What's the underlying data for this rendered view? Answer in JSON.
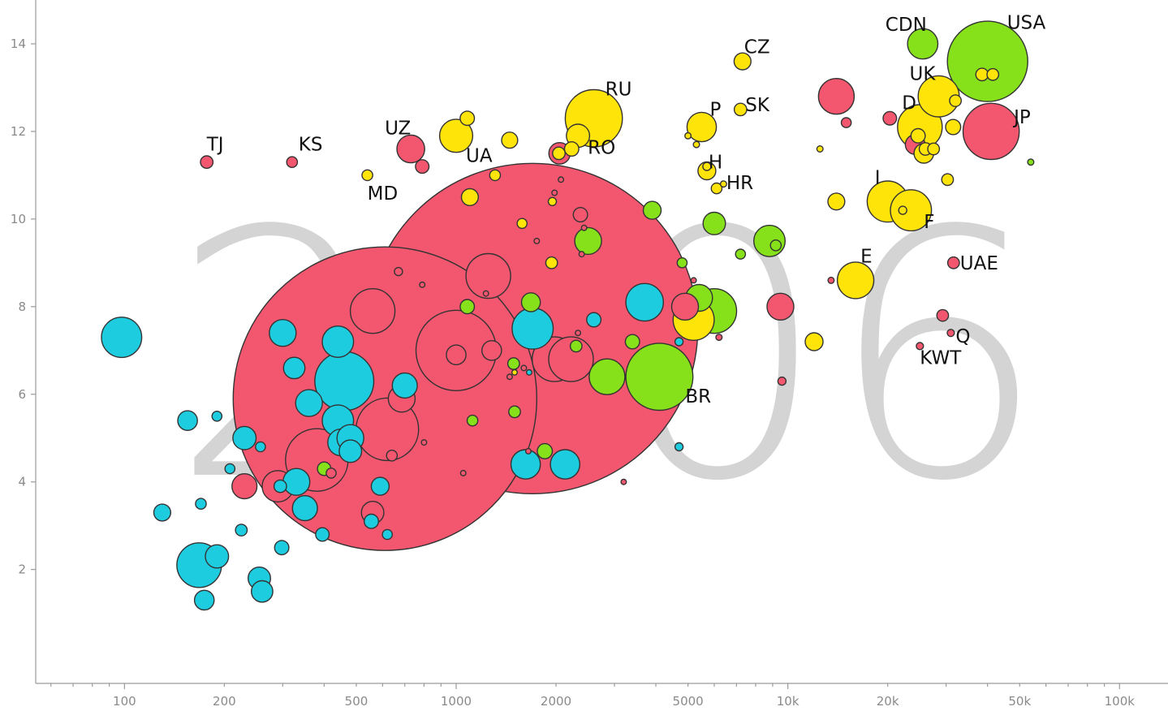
{
  "colors": {
    "blue": "#1ecce0",
    "red": "#f2576f",
    "green": "#86e01a",
    "yellow": "#ffe40a",
    "watermark": "#d4d4d4",
    "axis": "#9a9a9a"
  },
  "chart_data": {
    "type": "scatter",
    "title": "",
    "xlabel": "",
    "ylabel": "",
    "x_scale": "log",
    "xlim": [
      54,
      140000
    ],
    "ylim": [
      -0.6,
      15.0
    ],
    "watermark_year": "2006",
    "x_ticks": [
      {
        "value": 100,
        "label": "100"
      },
      {
        "value": 200,
        "label": "200"
      },
      {
        "value": 500,
        "label": "500"
      },
      {
        "value": 1000,
        "label": "1000"
      },
      {
        "value": 2000,
        "label": "2000"
      },
      {
        "value": 5000,
        "label": "5000"
      },
      {
        "value": 10000,
        "label": "10k"
      },
      {
        "value": 20000,
        "label": "20k"
      },
      {
        "value": 50000,
        "label": "50k"
      },
      {
        "value": 100000,
        "label": "100k"
      }
    ],
    "y_ticks": [
      {
        "value": 2,
        "label": "2"
      },
      {
        "value": 4,
        "label": "4"
      },
      {
        "value": 6,
        "label": "6"
      },
      {
        "value": 8,
        "label": "8"
      },
      {
        "value": 10,
        "label": "10"
      },
      {
        "value": 12,
        "label": "12"
      },
      {
        "value": 14,
        "label": "14"
      }
    ],
    "bubbles": [
      {
        "x": 1700,
        "y": 7.5,
        "size": 37,
        "color": "red"
      },
      {
        "x": 610,
        "y": 5.9,
        "size": 34,
        "color": "red"
      },
      {
        "x": 1000,
        "y": 7.0,
        "size": 9,
        "color": "red"
      },
      {
        "x": 40000,
        "y": 13.6,
        "size": 9,
        "color": "green"
      },
      {
        "x": 4100,
        "y": 6.4,
        "size": 7.5,
        "color": "green"
      },
      {
        "x": 460,
        "y": 6.3,
        "size": 6.6,
        "color": "blue"
      },
      {
        "x": 2600,
        "y": 12.3,
        "size": 6.4,
        "color": "yellow"
      },
      {
        "x": 41000,
        "y": 12.0,
        "size": 6.3,
        "color": "red"
      },
      {
        "x": 380,
        "y": 4.5,
        "size": 7,
        "color": "red"
      },
      {
        "x": 620,
        "y": 5.2,
        "size": 7,
        "color": "red"
      },
      {
        "x": 1250,
        "y": 8.7,
        "size": 5,
        "color": "red"
      },
      {
        "x": 1980,
        "y": 6.8,
        "size": 5,
        "color": "red"
      },
      {
        "x": 2220,
        "y": 6.8,
        "size": 5,
        "color": "red"
      },
      {
        "x": 25000,
        "y": 12.1,
        "size": 5,
        "color": "yellow"
      },
      {
        "x": 6000,
        "y": 7.9,
        "size": 5,
        "color": "green"
      },
      {
        "x": 560,
        "y": 7.9,
        "size": 5,
        "color": "red"
      },
      {
        "x": 1700,
        "y": 7.5,
        "size": 4.6,
        "color": "blue"
      },
      {
        "x": 28500,
        "y": 12.8,
        "size": 4.6,
        "color": "yellow"
      },
      {
        "x": 20000,
        "y": 10.4,
        "size": 4.6,
        "color": "yellow"
      },
      {
        "x": 5200,
        "y": 7.7,
        "size": 4.6,
        "color": "yellow"
      },
      {
        "x": 23500,
        "y": 10.2,
        "size": 4.6,
        "color": "yellow"
      },
      {
        "x": 3700,
        "y": 8.1,
        "size": 4.2,
        "color": "blue"
      },
      {
        "x": 290,
        "y": 3.9,
        "size": 3.5,
        "color": "red"
      },
      {
        "x": 16000,
        "y": 8.6,
        "size": 4.1,
        "color": "yellow"
      },
      {
        "x": 98,
        "y": 7.3,
        "size": 4.5,
        "color": "blue"
      },
      {
        "x": 168,
        "y": 2.1,
        "size": 5,
        "color": "blue"
      },
      {
        "x": 440,
        "y": 7.2,
        "size": 3.5,
        "color": "blue"
      },
      {
        "x": 440,
        "y": 5.4,
        "size": 3.5,
        "color": "blue"
      },
      {
        "x": 2850,
        "y": 6.4,
        "size": 4,
        "color": "green"
      },
      {
        "x": 8800,
        "y": 9.5,
        "size": 3.5,
        "color": "green"
      },
      {
        "x": 1000,
        "y": 11.9,
        "size": 3.7,
        "color": "yellow"
      },
      {
        "x": 14000,
        "y": 12.8,
        "size": 4,
        "color": "red"
      },
      {
        "x": 25500,
        "y": 14.0,
        "size": 3.4,
        "color": "green"
      },
      {
        "x": 730,
        "y": 11.6,
        "size": 3.1,
        "color": "red"
      },
      {
        "x": 1620,
        "y": 4.4,
        "size": 3.3,
        "color": "blue"
      },
      {
        "x": 2130,
        "y": 4.4,
        "size": 3.3,
        "color": "blue"
      },
      {
        "x": 5500,
        "y": 12.1,
        "size": 3.3,
        "color": "yellow"
      },
      {
        "x": 9500,
        "y": 8.0,
        "size": 3,
        "color": "red"
      },
      {
        "x": 5400,
        "y": 8.2,
        "size": 3,
        "color": "green"
      },
      {
        "x": 4900,
        "y": 8.0,
        "size": 3,
        "color": "red"
      },
      {
        "x": 2500,
        "y": 9.5,
        "size": 3,
        "color": "green"
      },
      {
        "x": 685,
        "y": 5.9,
        "size": 3,
        "color": "red"
      },
      {
        "x": 450,
        "y": 4.9,
        "size": 3,
        "color": "blue"
      },
      {
        "x": 360,
        "y": 5.8,
        "size": 3,
        "color": "blue"
      },
      {
        "x": 300,
        "y": 7.4,
        "size": 3,
        "color": "blue"
      },
      {
        "x": 350,
        "y": 3.4,
        "size": 2.8,
        "color": "blue"
      },
      {
        "x": 230,
        "y": 3.9,
        "size": 2.8,
        "color": "red"
      },
      {
        "x": 2050,
        "y": 11.5,
        "size": 2.4,
        "color": "red"
      },
      {
        "x": 6000,
        "y": 9.9,
        "size": 2.5,
        "color": "green"
      },
      {
        "x": 480,
        "y": 5.0,
        "size": 3,
        "color": "blue"
      },
      {
        "x": 480,
        "y": 4.7,
        "size": 2.5,
        "color": "blue"
      },
      {
        "x": 560,
        "y": 3.3,
        "size": 2.5,
        "color": "red"
      },
      {
        "x": 1080,
        "y": 12.3,
        "size": 1.6,
        "color": "yellow"
      },
      {
        "x": 190,
        "y": 2.3,
        "size": 2.6,
        "color": "blue"
      },
      {
        "x": 255,
        "y": 1.8,
        "size": 2.5,
        "color": "blue"
      },
      {
        "x": 260,
        "y": 1.5,
        "size": 2.4,
        "color": "blue"
      },
      {
        "x": 174,
        "y": 1.3,
        "size": 2.2,
        "color": "blue"
      },
      {
        "x": 230,
        "y": 5.0,
        "size": 2.6,
        "color": "blue"
      },
      {
        "x": 155,
        "y": 5.4,
        "size": 2.2,
        "color": "blue"
      },
      {
        "x": 130,
        "y": 3.3,
        "size": 1.9,
        "color": "blue"
      },
      {
        "x": 330,
        "y": 4.0,
        "size": 3,
        "color": "blue"
      },
      {
        "x": 325,
        "y": 6.6,
        "size": 2.4,
        "color": "blue"
      },
      {
        "x": 1680,
        "y": 8.1,
        "size": 2.1,
        "color": "green"
      },
      {
        "x": 790,
        "y": 11.2,
        "size": 1.5,
        "color": "red"
      },
      {
        "x": 1000,
        "y": 6.9,
        "size": 2.2,
        "color": "red"
      },
      {
        "x": 1280,
        "y": 7.0,
        "size": 2.2,
        "color": "red"
      },
      {
        "x": 700,
        "y": 6.2,
        "size": 2.8,
        "color": "blue"
      },
      {
        "x": 1310,
        "y": 11.0,
        "size": 1.2,
        "color": "yellow"
      },
      {
        "x": 1100,
        "y": 10.5,
        "size": 1.9,
        "color": "yellow"
      },
      {
        "x": 1450,
        "y": 11.8,
        "size": 1.8,
        "color": "yellow"
      },
      {
        "x": 2330,
        "y": 11.9,
        "size": 2.6,
        "color": "yellow"
      },
      {
        "x": 2230,
        "y": 11.6,
        "size": 1.6,
        "color": "yellow"
      },
      {
        "x": 2370,
        "y": 10.1,
        "size": 1.6,
        "color": "red"
      },
      {
        "x": 2040,
        "y": 11.5,
        "size": 1.4,
        "color": "yellow"
      },
      {
        "x": 3900,
        "y": 10.2,
        "size": 2,
        "color": "green"
      },
      {
        "x": 12000,
        "y": 7.2,
        "size": 2,
        "color": "yellow"
      },
      {
        "x": 7300,
        "y": 13.6,
        "size": 1.9,
        "color": "yellow"
      },
      {
        "x": 5700,
        "y": 11.1,
        "size": 2,
        "color": "yellow"
      },
      {
        "x": 7200,
        "y": 12.5,
        "size": 1.4,
        "color": "yellow"
      },
      {
        "x": 6100,
        "y": 10.7,
        "size": 1.2,
        "color": "yellow"
      },
      {
        "x": 14000,
        "y": 10.4,
        "size": 1.9,
        "color": "yellow"
      },
      {
        "x": 20300,
        "y": 12.3,
        "size": 1.5,
        "color": "red"
      },
      {
        "x": 24200,
        "y": 11.7,
        "size": 2.2,
        "color": "red"
      },
      {
        "x": 25700,
        "y": 11.5,
        "size": 2.2,
        "color": "yellow"
      },
      {
        "x": 24700,
        "y": 11.9,
        "size": 1.6,
        "color": "yellow"
      },
      {
        "x": 26000,
        "y": 11.6,
        "size": 1.4,
        "color": "yellow"
      },
      {
        "x": 27500,
        "y": 11.6,
        "size": 1.3,
        "color": "yellow"
      },
      {
        "x": 31500,
        "y": 12.1,
        "size": 1.7,
        "color": "yellow"
      },
      {
        "x": 32000,
        "y": 12.7,
        "size": 1.3,
        "color": "yellow"
      },
      {
        "x": 38500,
        "y": 13.3,
        "size": 1.4,
        "color": "yellow"
      },
      {
        "x": 41500,
        "y": 13.3,
        "size": 1.3,
        "color": "yellow"
      },
      {
        "x": 30300,
        "y": 10.9,
        "size": 1.3,
        "color": "yellow"
      },
      {
        "x": 31600,
        "y": 9.0,
        "size": 1.3,
        "color": "red"
      },
      {
        "x": 29300,
        "y": 7.8,
        "size": 1.3,
        "color": "red"
      },
      {
        "x": 15000,
        "y": 12.2,
        "size": 1.1,
        "color": "red"
      },
      {
        "x": 177,
        "y": 11.3,
        "size": 1.4,
        "color": "red"
      },
      {
        "x": 320,
        "y": 11.3,
        "size": 1.2,
        "color": "red"
      },
      {
        "x": 540,
        "y": 11.0,
        "size": 1.2,
        "color": "yellow"
      },
      {
        "x": 1080,
        "y": 8.0,
        "size": 1.6,
        "color": "green"
      },
      {
        "x": 2300,
        "y": 7.1,
        "size": 1.3,
        "color": "green"
      },
      {
        "x": 3400,
        "y": 7.2,
        "size": 1.6,
        "color": "green"
      },
      {
        "x": 1120,
        "y": 5.4,
        "size": 1.2,
        "color": "green"
      },
      {
        "x": 1500,
        "y": 5.6,
        "size": 1.3,
        "color": "green"
      },
      {
        "x": 1850,
        "y": 4.7,
        "size": 1.7,
        "color": "green"
      },
      {
        "x": 400,
        "y": 4.3,
        "size": 1.5,
        "color": "green"
      },
      {
        "x": 1490,
        "y": 6.7,
        "size": 1.3,
        "color": "green"
      },
      {
        "x": 7200,
        "y": 9.2,
        "size": 1.1,
        "color": "green"
      },
      {
        "x": 4800,
        "y": 9.0,
        "size": 1.1,
        "color": "green"
      },
      {
        "x": 420,
        "y": 4.2,
        "size": 1.1,
        "color": "red"
      },
      {
        "x": 640,
        "y": 4.6,
        "size": 1.2,
        "color": "red"
      },
      {
        "x": 2600,
        "y": 7.7,
        "size": 1.6,
        "color": "blue"
      },
      {
        "x": 4700,
        "y": 4.8,
        "size": 0.9,
        "color": "blue"
      },
      {
        "x": 4700,
        "y": 7.2,
        "size": 0.9,
        "color": "blue"
      },
      {
        "x": 170,
        "y": 3.5,
        "size": 1.2,
        "color": "blue"
      },
      {
        "x": 225,
        "y": 2.9,
        "size": 1.3,
        "color": "blue"
      },
      {
        "x": 298,
        "y": 2.5,
        "size": 1.6,
        "color": "blue"
      },
      {
        "x": 395,
        "y": 2.8,
        "size": 1.5,
        "color": "blue"
      },
      {
        "x": 555,
        "y": 3.1,
        "size": 1.6,
        "color": "blue"
      },
      {
        "x": 590,
        "y": 3.9,
        "size": 2,
        "color": "blue"
      },
      {
        "x": 620,
        "y": 2.8,
        "size": 1.1,
        "color": "blue"
      },
      {
        "x": 190,
        "y": 5.5,
        "size": 1.1,
        "color": "blue"
      },
      {
        "x": 208,
        "y": 4.3,
        "size": 1.1,
        "color": "blue"
      },
      {
        "x": 257,
        "y": 4.8,
        "size": 1.1,
        "color": "blue"
      },
      {
        "x": 295,
        "y": 3.9,
        "size": 1.4,
        "color": "blue"
      },
      {
        "x": 9200,
        "y": 9.4,
        "size": 1.2,
        "color": "green"
      },
      {
        "x": 9600,
        "y": 6.3,
        "size": 0.9,
        "color": "red"
      },
      {
        "x": 25000,
        "y": 7.1,
        "size": 0.8,
        "color": "red"
      },
      {
        "x": 31000,
        "y": 7.4,
        "size": 0.8,
        "color": "red"
      },
      {
        "x": 13500,
        "y": 8.6,
        "size": 0.7,
        "color": "red"
      },
      {
        "x": 54000,
        "y": 11.3,
        "size": 0.7,
        "color": "green"
      },
      {
        "x": 12500,
        "y": 11.6,
        "size": 0.7,
        "color": "yellow"
      },
      {
        "x": 5300,
        "y": 11.7,
        "size": 0.7,
        "color": "yellow"
      },
      {
        "x": 5000,
        "y": 11.9,
        "size": 0.7,
        "color": "yellow"
      },
      {
        "x": 6400,
        "y": 10.8,
        "size": 0.7,
        "color": "yellow"
      },
      {
        "x": 6200,
        "y": 7.3,
        "size": 0.7,
        "color": "red"
      },
      {
        "x": 5200,
        "y": 8.6,
        "size": 0.6,
        "color": "red"
      },
      {
        "x": 3200,
        "y": 4.0,
        "size": 0.6,
        "color": "red"
      },
      {
        "x": 800,
        "y": 4.9,
        "size": 0.6,
        "color": "red"
      },
      {
        "x": 670,
        "y": 8.8,
        "size": 0.9,
        "color": "red"
      },
      {
        "x": 790,
        "y": 8.5,
        "size": 0.6,
        "color": "red"
      },
      {
        "x": 2390,
        "y": 9.2,
        "size": 0.6,
        "color": "red"
      },
      {
        "x": 2070,
        "y": 10.9,
        "size": 0.6,
        "color": "red"
      },
      {
        "x": 2430,
        "y": 9.8,
        "size": 0.6,
        "color": "red"
      },
      {
        "x": 1750,
        "y": 9.5,
        "size": 0.6,
        "color": "red"
      },
      {
        "x": 1050,
        "y": 4.2,
        "size": 0.6,
        "color": "red"
      },
      {
        "x": 1600,
        "y": 6.6,
        "size": 0.6,
        "color": "red"
      },
      {
        "x": 1650,
        "y": 4.7,
        "size": 0.6,
        "color": "red"
      },
      {
        "x": 1450,
        "y": 6.4,
        "size": 0.6,
        "color": "red"
      },
      {
        "x": 2330,
        "y": 7.4,
        "size": 0.6,
        "color": "red"
      },
      {
        "x": 1660,
        "y": 6.5,
        "size": 0.6,
        "color": "blue"
      },
      {
        "x": 1940,
        "y": 9.0,
        "size": 1.3,
        "color": "yellow"
      },
      {
        "x": 1950,
        "y": 10.4,
        "size": 0.9,
        "color": "yellow"
      },
      {
        "x": 1580,
        "y": 9.9,
        "size": 1.1,
        "color": "yellow"
      },
      {
        "x": 5700,
        "y": 11.2,
        "size": 0.9,
        "color": "yellow"
      },
      {
        "x": 22200,
        "y": 10.2,
        "size": 0.9,
        "color": "yellow"
      },
      {
        "x": 1230,
        "y": 8.3,
        "size": 0.6,
        "color": "red"
      },
      {
        "x": 1980,
        "y": 10.6,
        "size": 0.6,
        "color": "red"
      },
      {
        "x": 1500,
        "y": 6.5,
        "size": 0.6,
        "color": "yellow"
      }
    ],
    "labels": [
      {
        "text": "TJ",
        "x": 177,
        "y": 11.3,
        "dx": 0,
        "dy": -22
      },
      {
        "text": "KS",
        "x": 320,
        "y": 11.3,
        "dx": 8,
        "dy": -22
      },
      {
        "text": "UZ",
        "x": 730,
        "y": 11.6,
        "dx": -32,
        "dy": -26
      },
      {
        "text": "MD",
        "x": 540,
        "y": 11.0,
        "dx": 0,
        "dy": 22
      },
      {
        "text": "UA",
        "x": 1000,
        "y": 11.9,
        "dx": 12,
        "dy": 24
      },
      {
        "text": "RU",
        "x": 2600,
        "y": 12.3,
        "dx": 14,
        "dy": -36
      },
      {
        "text": "RO",
        "x": 2330,
        "y": 11.9,
        "dx": 12,
        "dy": 14
      },
      {
        "text": "P",
        "x": 5500,
        "y": 12.1,
        "dx": 10,
        "dy": -22
      },
      {
        "text": "H",
        "x": 5700,
        "y": 11.1,
        "dx": 2,
        "dy": -11
      },
      {
        "text": "HR",
        "x": 6100,
        "y": 10.7,
        "dx": 12,
        "dy": -7
      },
      {
        "text": "CZ",
        "x": 7300,
        "y": 13.6,
        "dx": 2,
        "dy": -18
      },
      {
        "text": "SK",
        "x": 7200,
        "y": 12.5,
        "dx": 6,
        "dy": -6
      },
      {
        "text": "CDN",
        "x": 25500,
        "y": 14.0,
        "dx": -46,
        "dy": -24
      },
      {
        "text": "USA",
        "x": 40000,
        "y": 13.6,
        "dx": 24,
        "dy": -48
      },
      {
        "text": "UK",
        "x": 28500,
        "y": 12.8,
        "dx": -36,
        "dy": -28
      },
      {
        "text": "D",
        "x": 25000,
        "y": 12.1,
        "dx": -22,
        "dy": -30
      },
      {
        "text": "JP",
        "x": 41000,
        "y": 12.0,
        "dx": 28,
        "dy": -18
      },
      {
        "text": "I",
        "x": 20000,
        "y": 10.4,
        "dx": -16,
        "dy": -30
      },
      {
        "text": "F",
        "x": 23500,
        "y": 10.2,
        "dx": 16,
        "dy": 14
      },
      {
        "text": "E",
        "x": 16000,
        "y": 8.6,
        "dx": 6,
        "dy": -30
      },
      {
        "text": "UAE",
        "x": 31600,
        "y": 9.0,
        "dx": 8,
        "dy": 0
      },
      {
        "text": "Q",
        "x": 31000,
        "y": 7.4,
        "dx": 6,
        "dy": 4
      },
      {
        "text": "KWT",
        "x": 25000,
        "y": 7.1,
        "dx": 0,
        "dy": 14
      },
      {
        "text": "BR",
        "x": 4100,
        "y": 6.4,
        "dx": 32,
        "dy": 24
      }
    ]
  }
}
